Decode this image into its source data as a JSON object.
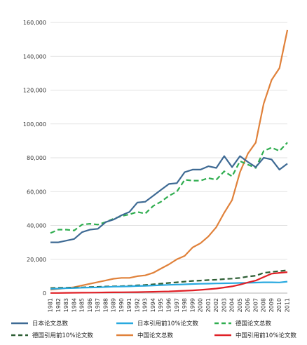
{
  "chart_data": {
    "type": "line",
    "title": "",
    "xlabel": "",
    "ylabel": "",
    "ylim": [
      0,
      160000
    ],
    "yticks": [
      0,
      20000,
      40000,
      60000,
      80000,
      100000,
      120000,
      140000,
      160000
    ],
    "ytick_labels": [
      "0",
      "20,000",
      "40,000",
      "60,000",
      "80,000",
      "100,000",
      "120,000",
      "140,000",
      "160,000"
    ],
    "grid": true,
    "legend_position": "bottom",
    "x": [
      "1981",
      "1982",
      "1983",
      "1984",
      "1985",
      "1986",
      "1987",
      "1988",
      "1989",
      "1990",
      "1991",
      "1992",
      "1993",
      "1994",
      "1995",
      "1996",
      "1997",
      "1998",
      "1999",
      "2000",
      "2001",
      "2002",
      "2003",
      "2004",
      "2005",
      "2006",
      "2007",
      "2008",
      "2009",
      "2010",
      "2011"
    ],
    "series": [
      {
        "name": "日本论文总数",
        "color": "#3e6a94",
        "dash": "solid",
        "values": [
          30000,
          30000,
          31000,
          32000,
          36000,
          37500,
          38000,
          42000,
          43500,
          46000,
          48000,
          53500,
          54000,
          57500,
          61000,
          64500,
          65000,
          71500,
          73000,
          73000,
          75000,
          74000,
          81000,
          74500,
          81000,
          77500,
          74500,
          80000,
          79000,
          73000,
          76500
        ]
      },
      {
        "name": "日本引用前10%论文数",
        "color": "#29a9df",
        "dash": "solid",
        "values": [
          2500,
          2700,
          2900,
          3000,
          3200,
          3300,
          3400,
          3600,
          3800,
          3900,
          4000,
          4200,
          4300,
          4500,
          4700,
          4900,
          5000,
          5200,
          5400,
          5500,
          5600,
          5700,
          5800,
          5900,
          6000,
          6100,
          6200,
          6400,
          6400,
          6300,
          6800
        ]
      },
      {
        "name": "德国论文总数",
        "color": "#2fad4f",
        "dash": "dash",
        "values": [
          35500,
          37500,
          37500,
          37000,
          40500,
          41000,
          40500,
          42000,
          44000,
          45500,
          46500,
          48000,
          47000,
          51500,
          54000,
          57500,
          60000,
          67000,
          66500,
          66500,
          68000,
          67000,
          72000,
          69000,
          78000,
          76000,
          74000,
          84000,
          86000,
          84000,
          89000
        ]
      },
      {
        "name": "德国引用前10%论文数",
        "color": "#2d5e34",
        "dash": "dash",
        "values": [
          3000,
          3100,
          3200,
          3300,
          3400,
          3600,
          3700,
          3900,
          4000,
          4100,
          4300,
          4600,
          4800,
          5200,
          5600,
          6000,
          6400,
          6800,
          7200,
          7400,
          7700,
          7900,
          8300,
          8600,
          9000,
          9800,
          10300,
          12000,
          12500,
          13000,
          13500
        ]
      },
      {
        "name": "中国论文总数",
        "color": "#e0813a",
        "dash": "solid",
        "values": [
          2000,
          2500,
          3000,
          3500,
          4500,
          5500,
          6500,
          7500,
          8500,
          9000,
          9000,
          10000,
          10500,
          12000,
          14500,
          17000,
          20000,
          22000,
          27000,
          29500,
          33500,
          39000,
          47500,
          55000,
          71500,
          82500,
          89000,
          112000,
          126000,
          133000,
          155500
        ]
      },
      {
        "name": "中国引用前10%论文数",
        "color": "#e02026",
        "dash": "solid",
        "values": [
          100,
          100,
          150,
          200,
          250,
          300,
          350,
          400,
          450,
          500,
          550,
          600,
          700,
          800,
          900,
          1000,
          1200,
          1400,
          1600,
          1900,
          2300,
          2700,
          3300,
          4000,
          5000,
          6300,
          7400,
          9500,
          11500,
          12000,
          12400
        ]
      }
    ]
  }
}
